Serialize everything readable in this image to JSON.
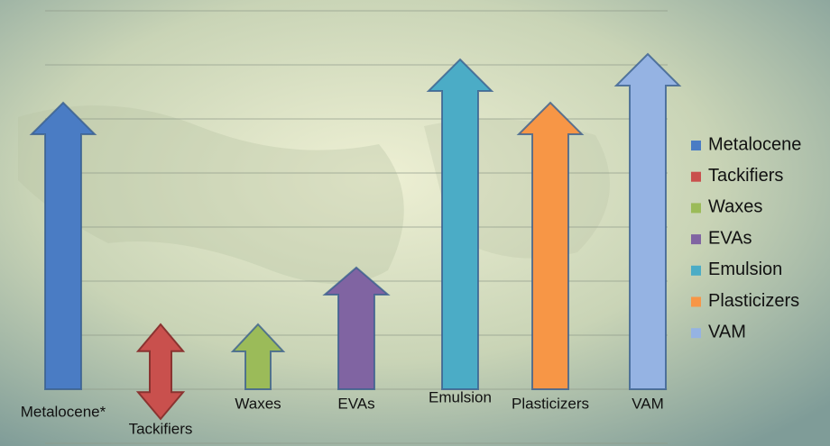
{
  "chart_data": {
    "type": "arrow-bar",
    "categories": [
      "Metalocene*",
      "Tackifiers",
      "Waxes",
      "EVAs",
      "Emulsion",
      "Plasticizers",
      "VAM"
    ],
    "legend": [
      "Metalocene",
      "Tackifiers",
      "Waxes",
      "EVAs",
      "Emulsion",
      "Plasticizers",
      "VAM"
    ],
    "values": [
      5.3,
      1.2,
      1.2,
      2.25,
      6.1,
      5.3,
      6.2
    ],
    "min_values": [
      0,
      -0.55,
      0,
      0,
      0,
      0,
      0
    ],
    "colors": [
      "#4a7cc4",
      "#c9504d",
      "#9bbb59",
      "#8064a2",
      "#4bacc6",
      "#f79646",
      "#95b3e3"
    ],
    "ylim": [
      -1.05,
      7.2
    ],
    "yticks": [
      -1,
      0,
      1,
      2,
      3,
      4,
      5,
      6,
      7
    ],
    "grid": true
  }
}
